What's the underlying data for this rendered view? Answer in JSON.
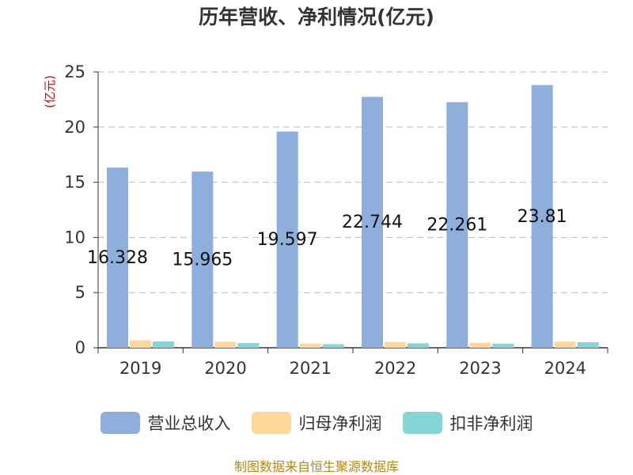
{
  "chart_data": {
    "type": "bar",
    "title": "历年营收、净利情况(亿元)",
    "xlabel": "",
    "ylabel": "(亿元)",
    "ylim": [
      0,
      25
    ],
    "yticks": [
      0,
      5,
      10,
      15,
      20,
      25
    ],
    "grid": "dashed horizontal",
    "legend_position": "bottom",
    "categories": [
      "2019",
      "2020",
      "2021",
      "2022",
      "2023",
      "2024"
    ],
    "series": [
      {
        "name": "营业总收入",
        "color": "#8eaedb",
        "values": [
          16.328,
          15.965,
          19.597,
          22.744,
          22.261,
          23.81
        ],
        "labels": [
          "16.328",
          "15.965",
          "19.597",
          "22.744",
          "22.261",
          "23.81"
        ]
      },
      {
        "name": "归母净利润",
        "color": "#fdd89a",
        "values": [
          0.68,
          0.55,
          0.38,
          0.52,
          0.45,
          0.56
        ]
      },
      {
        "name": "扣非净利润",
        "color": "#84d5d6",
        "values": [
          0.57,
          0.42,
          0.33,
          0.4,
          0.37,
          0.5
        ]
      }
    ]
  },
  "source": "制图数据来自恒生聚源数据库"
}
